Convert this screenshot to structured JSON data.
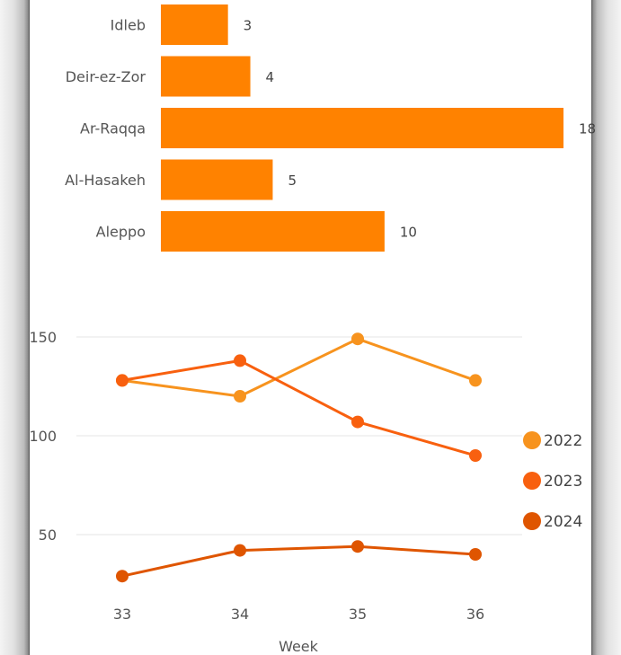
{
  "chart_data": [
    {
      "type": "bar",
      "orientation": "horizontal",
      "categories": [
        "Idleb",
        "Deir-ez-Zor",
        "Ar-Raqqa",
        "Al-Hasakeh",
        "Aleppo"
      ],
      "values": [
        3,
        4,
        18,
        5,
        10
      ],
      "value_labels": [
        "3",
        "4",
        "18",
        "5",
        "10"
      ],
      "color": "#ff8200",
      "xlim": [
        0,
        18
      ],
      "grid": false
    },
    {
      "type": "line",
      "xlabel": "Week",
      "x": [
        33,
        34,
        35,
        36
      ],
      "x_tick_labels": [
        "33",
        "34",
        "35",
        "36"
      ],
      "y_ticks": [
        50,
        100,
        150
      ],
      "y_tick_labels": [
        "50",
        "100",
        "150"
      ],
      "ylim": [
        30,
        150
      ],
      "grid": true,
      "legend_position": "right",
      "series": [
        {
          "name": "2022",
          "color": "#f7931e",
          "values": [
            128,
            120,
            149,
            128
          ]
        },
        {
          "name": "2023",
          "color": "#f8600f",
          "values": [
            128,
            138,
            107,
            90
          ]
        },
        {
          "name": "2024",
          "color": "#df5500",
          "values": [
            29,
            42,
            44,
            40
          ]
        }
      ]
    }
  ]
}
